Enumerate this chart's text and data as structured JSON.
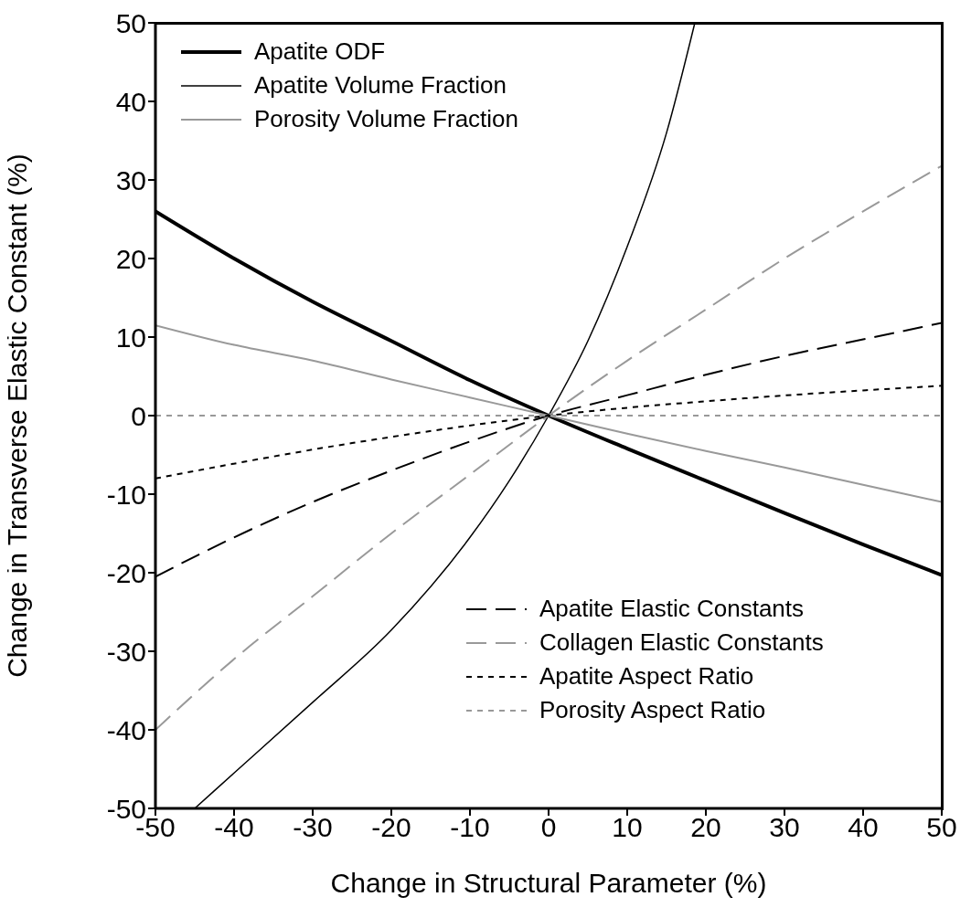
{
  "chart_data": {
    "type": "line",
    "xlabel": "Change in Structural Parameter (%)",
    "ylabel": "Change in Transverse Elastic Constant (%)",
    "xlim": [
      -50,
      50
    ],
    "xticks": [
      -50,
      -40,
      -30,
      -20,
      -10,
      0,
      10,
      20,
      30,
      40,
      50
    ],
    "ylim": [
      -50,
      50
    ],
    "yticks": [
      -50,
      -40,
      -30,
      -20,
      -10,
      0,
      10,
      20,
      30,
      40,
      50
    ],
    "grid": false,
    "legend": "top left",
    "marker": "none",
    "series": [
      {
        "name": "Apatite ODF",
        "color": "#000000",
        "line_style": "solid",
        "x": [
          -50,
          -40,
          -30,
          -20,
          -10,
          0,
          10,
          20,
          30,
          40,
          50
        ],
        "values": [
          26,
          20,
          14.5,
          9.5,
          4.5,
          0,
          -4.2,
          -8.3,
          -12.4,
          -16.4,
          -20.3
        ]
      },
      {
        "name": "Apatite Volume Fraction",
        "color": "#000000",
        "line_style": "solid",
        "x": [
          -45,
          -40,
          -30,
          -20,
          -10,
          -5,
          0,
          5,
          10,
          15,
          18.6
        ],
        "values": [
          -50,
          -45.5,
          -36.5,
          -27.3,
          -15.5,
          -8.3,
          0,
          9.5,
          21.5,
          36,
          50
        ]
      },
      {
        "name": "Porosity Volume Fraction",
        "color": "#999999",
        "line_style": "solid",
        "x": [
          -50,
          -40,
          -30,
          -20,
          -10,
          0,
          10,
          20,
          30,
          40,
          50
        ],
        "values": [
          11.5,
          9,
          7,
          4.6,
          2.3,
          0,
          -2.3,
          -4.5,
          -6.6,
          -8.8,
          -11
        ]
      },
      {
        "name": "Apatite Elastic Constants",
        "color": "#000000",
        "line_style": "dashed",
        "x": [
          -50,
          -40,
          -30,
          -20,
          -10,
          0,
          10,
          20,
          30,
          40,
          50
        ],
        "values": [
          -20.5,
          -15.5,
          -11,
          -7,
          -3.3,
          0,
          2.6,
          5.2,
          7.6,
          9.7,
          11.8
        ]
      },
      {
        "name": "Collagen Elastic Constants",
        "color": "#999999",
        "line_style": "dashed",
        "x": [
          -50,
          -40,
          -30,
          -20,
          -10,
          0,
          10,
          20,
          30,
          40,
          50
        ],
        "values": [
          -40,
          -31,
          -23,
          -15,
          -7.5,
          0,
          7,
          13.5,
          20,
          26,
          31.8
        ]
      },
      {
        "name": "Apatite Aspect Ratio",
        "color": "#000000",
        "line_style": "dotted",
        "x": [
          -50,
          -25,
          0,
          25,
          50
        ],
        "values": [
          -8,
          -3.5,
          0,
          2.2,
          3.8
        ]
      },
      {
        "name": "Porosity Aspect Ratio",
        "color": "#999999",
        "line_style": "dotted",
        "x": [
          -50,
          0,
          50
        ],
        "values": [
          0,
          0,
          0
        ]
      }
    ]
  }
}
